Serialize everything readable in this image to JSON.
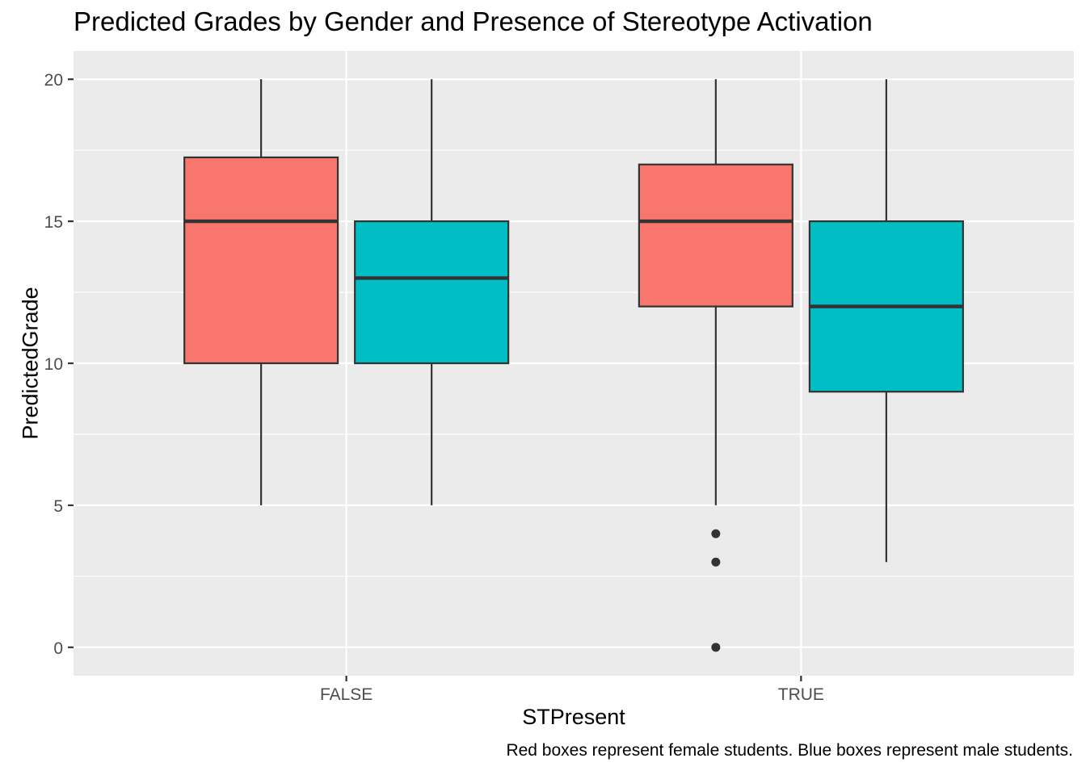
{
  "chart_data": {
    "type": "boxplot",
    "title": "Predicted Grades by Gender and Presence of Stereotype Activation",
    "xlabel": "STPresent",
    "ylabel": "PredictedGrade",
    "caption": "Red boxes represent female students. Blue boxes represent male students.",
    "categories": [
      "FALSE",
      "TRUE"
    ],
    "ylim": [
      -1,
      21
    ],
    "yticks": [
      0,
      5,
      10,
      15,
      20
    ],
    "grid": true,
    "legend": "none",
    "series": [
      {
        "color": "#F8766D",
        "boxes": [
          {
            "category": "FALSE",
            "min": 5,
            "q1": 10,
            "median": 15,
            "q3": 17.25,
            "max": 20,
            "outliers": []
          },
          {
            "category": "TRUE",
            "min": 5,
            "q1": 12,
            "median": 15,
            "q3": 17,
            "max": 20,
            "outliers": [
              4,
              3,
              0
            ]
          }
        ]
      },
      {
        "color": "#00BFC4",
        "boxes": [
          {
            "category": "FALSE",
            "min": 5,
            "q1": 10,
            "median": 13,
            "q3": 15,
            "max": 20,
            "outliers": []
          },
          {
            "category": "TRUE",
            "min": 3,
            "q1": 9,
            "median": 12,
            "q3": 15,
            "max": 20,
            "outliers": []
          }
        ]
      }
    ]
  }
}
